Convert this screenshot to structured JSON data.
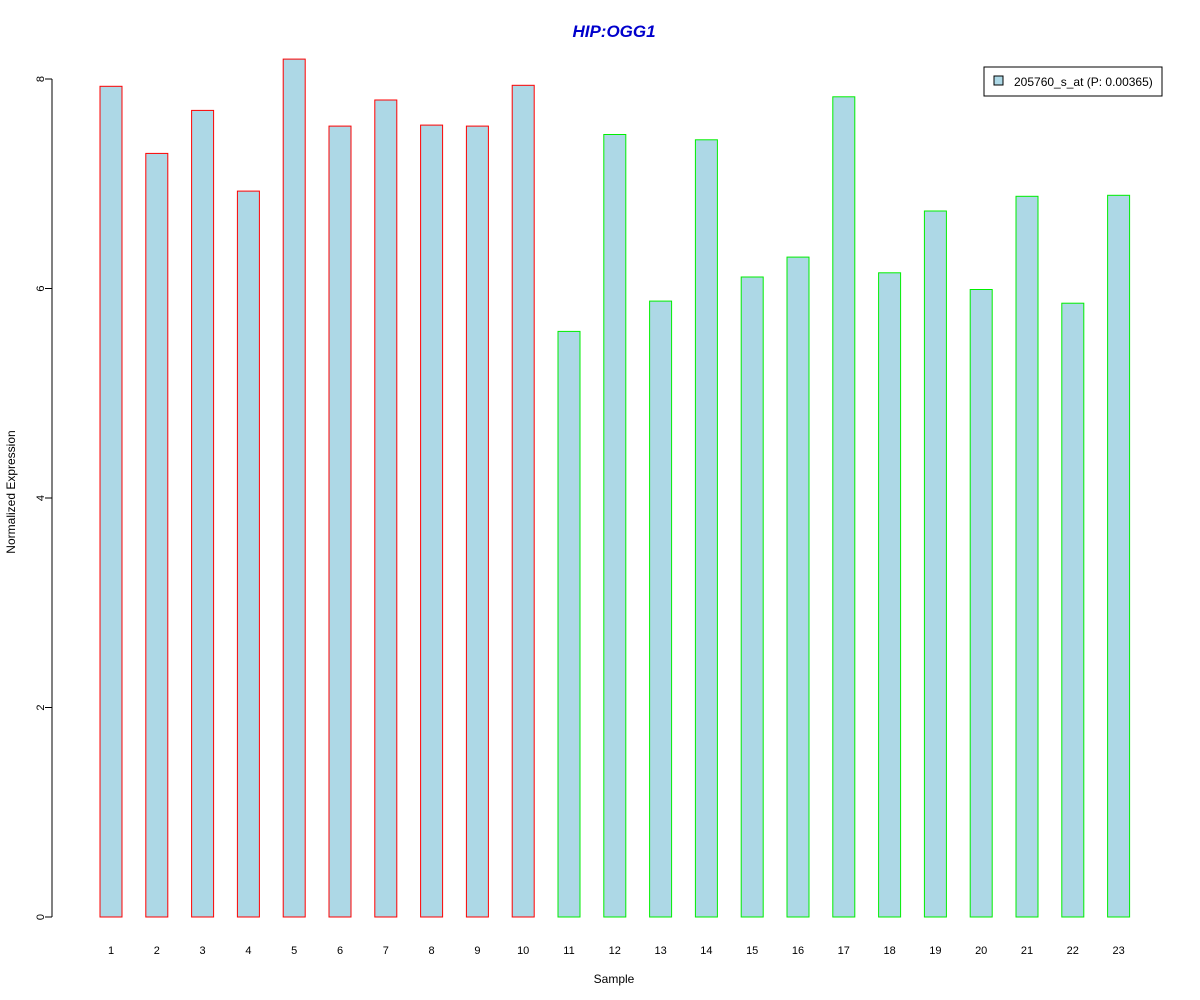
{
  "chart_data": {
    "type": "bar",
    "title": "HIP:OGG1",
    "xlabel": "Sample",
    "ylabel": "Normalized Expression",
    "categories": [
      "1",
      "2",
      "3",
      "4",
      "5",
      "6",
      "7",
      "8",
      "9",
      "10",
      "11",
      "12",
      "13",
      "14",
      "15",
      "16",
      "17",
      "18",
      "19",
      "20",
      "21",
      "22",
      "23"
    ],
    "series": [
      {
        "name": "205760_s_at (P: 0.00365)",
        "values": [
          7.93,
          7.29,
          7.7,
          6.93,
          8.19,
          7.55,
          7.8,
          7.56,
          7.55,
          7.94,
          5.59,
          7.47,
          5.88,
          7.42,
          6.11,
          6.3,
          7.83,
          6.15,
          6.74,
          5.99,
          6.88,
          5.86,
          6.89
        ]
      }
    ],
    "groups": [
      {
        "samples": [
          1,
          2,
          3,
          4,
          5,
          6,
          7,
          8,
          9,
          10
        ],
        "border_color": "#ff0000"
      },
      {
        "samples": [
          11,
          12,
          13,
          14,
          15,
          16,
          17,
          18,
          19,
          20,
          21,
          22,
          23
        ],
        "border_color": "#00ee00"
      }
    ],
    "bar_fill": "#add8e6",
    "title_color": "#0000cc",
    "ylim": [
      0,
      8.2
    ],
    "yticks": [
      0,
      2,
      4,
      6,
      8
    ],
    "legend_position": "top-right",
    "grid": false
  }
}
